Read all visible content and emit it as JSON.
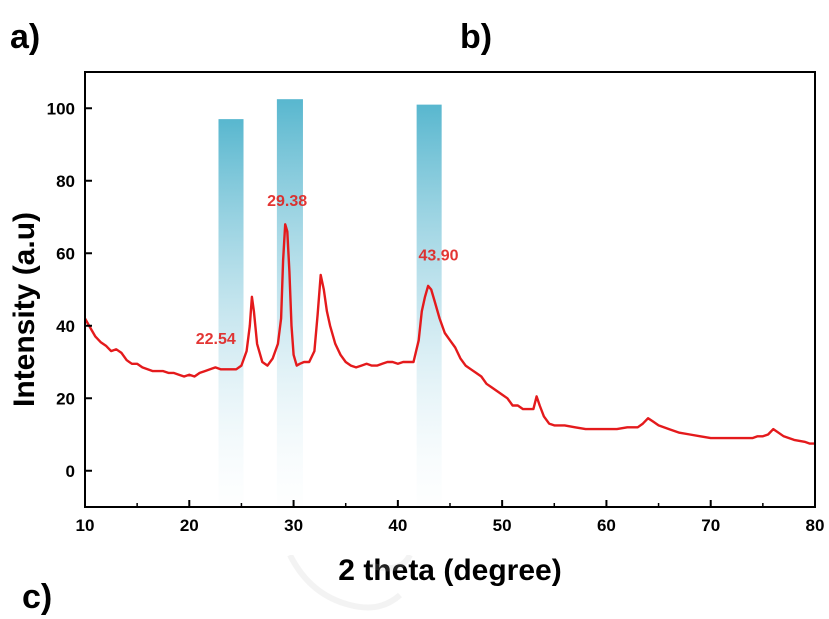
{
  "panel_labels": {
    "a": "a)",
    "b": "b)",
    "c": "c)"
  },
  "colors": {
    "series": "#e41a1c",
    "annotation": "#e0201e",
    "highlight": "#4fb3cc",
    "axis": "#000000"
  },
  "chart_data": {
    "type": "line",
    "xlabel": "2 theta (degree)",
    "ylabel": "Intensity (a.u)",
    "xlim": [
      10,
      80
    ],
    "ylim": [
      -10,
      110
    ],
    "xticks": [
      10,
      20,
      30,
      40,
      50,
      60,
      70,
      80
    ],
    "yticks": [
      0,
      20,
      40,
      60,
      80,
      100
    ],
    "grid": false,
    "highlight_bands": [
      {
        "x_start": 22.8,
        "x_end": 25.2,
        "y_top": 97
      },
      {
        "x_start": 28.4,
        "x_end": 30.9,
        "y_top": 102.5
      },
      {
        "x_start": 41.8,
        "x_end": 44.2,
        "y_top": 101
      }
    ],
    "annotations": [
      {
        "text": "22.54",
        "x": 22.54,
        "y": 35
      },
      {
        "text": "29.38",
        "x": 29.38,
        "y": 73
      },
      {
        "text": "43.90",
        "x": 43.9,
        "y": 58
      }
    ],
    "series": [
      {
        "x": [
          10,
          10.5,
          11,
          11.5,
          12,
          12.5,
          13,
          13.5,
          14,
          14.5,
          15,
          15.5,
          16,
          16.5,
          17,
          17.5,
          18,
          18.5,
          19,
          19.5,
          20,
          20.5,
          21,
          21.5,
          22,
          22.5,
          23,
          23.5,
          24,
          24.5,
          25,
          25.5,
          25.8,
          26,
          26.2,
          26.5,
          27,
          27.5,
          28,
          28.5,
          28.8,
          29,
          29.2,
          29.4,
          29.6,
          29.8,
          30,
          30.3,
          30.6,
          31,
          31.5,
          32,
          32.3,
          32.6,
          32.9,
          33.2,
          33.5,
          34,
          34.5,
          35,
          35.5,
          36,
          36.5,
          37,
          37.5,
          38,
          38.5,
          39,
          39.5,
          40,
          40.5,
          41,
          41.5,
          42,
          42.3,
          42.6,
          42.9,
          43.2,
          43.5,
          44,
          44.5,
          45,
          45.5,
          46,
          46.5,
          47,
          47.5,
          48,
          48.5,
          49,
          49.5,
          50,
          50.5,
          51,
          51.5,
          52,
          52.5,
          53,
          53.3,
          53.6,
          54,
          54.5,
          55,
          55.5,
          56,
          57,
          58,
          59,
          60,
          61,
          62,
          63,
          63.5,
          64,
          64.5,
          65,
          66,
          67,
          68,
          69,
          70,
          71,
          72,
          73,
          74,
          74.5,
          75,
          75.5,
          76,
          76.5,
          77,
          78,
          79,
          79.5,
          80
        ],
        "values": [
          42,
          39.5,
          37,
          35.5,
          34.5,
          33,
          33.5,
          32.5,
          30.5,
          29.5,
          29.5,
          28.5,
          28,
          27.5,
          27.5,
          27.5,
          27,
          27,
          26.5,
          26,
          26.5,
          26,
          27,
          27.5,
          28,
          28.5,
          28,
          28,
          28,
          28,
          29,
          33,
          40,
          48,
          44,
          35,
          30,
          29,
          31,
          35,
          42,
          58,
          68,
          66,
          55,
          40,
          32,
          29,
          29.5,
          30,
          30,
          33,
          43,
          54,
          50,
          44,
          40,
          35,
          32,
          30,
          29,
          28.5,
          29,
          29.5,
          29,
          29,
          29.5,
          30,
          30,
          29.5,
          30,
          30,
          30,
          36,
          44,
          48,
          51,
          50,
          47,
          42,
          38,
          36,
          34,
          31,
          29,
          28,
          27,
          26,
          24,
          23,
          22,
          21,
          20,
          18,
          18,
          17,
          17,
          17,
          20.5,
          18,
          15,
          13,
          12.5,
          12.5,
          12.5,
          12,
          11.5,
          11.5,
          11.5,
          11.5,
          12,
          12,
          13,
          14.5,
          13.5,
          12.5,
          11.5,
          10.5,
          10,
          9.5,
          9,
          9,
          9,
          9,
          9,
          9.5,
          9.5,
          10,
          11.5,
          10.5,
          9.5,
          8.5,
          8,
          7.5,
          7.5
        ]
      }
    ]
  }
}
